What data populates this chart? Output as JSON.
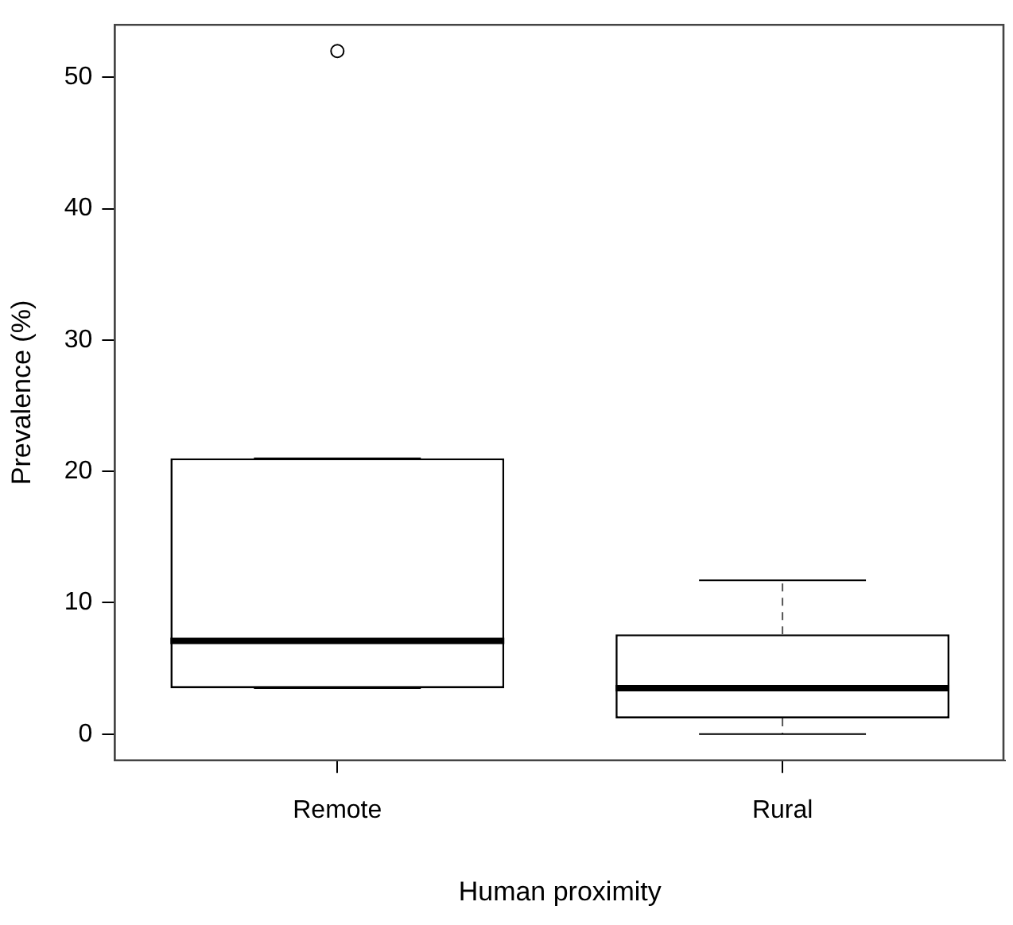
{
  "chart_data": {
    "type": "box",
    "xlabel": "Human proximity",
    "ylabel": "Prevalence (%)",
    "categories": [
      "Remote",
      "Rural"
    ],
    "boxes": [
      {
        "low": 3.5,
        "q1": 3.5,
        "median": 7.1,
        "q3": 21.0,
        "high": 21.0,
        "outliers": [
          52
        ]
      },
      {
        "low": 0,
        "q1": 1.2,
        "median": 3.5,
        "q3": 7.6,
        "high": 11.7
      }
    ],
    "ylim": [
      -2,
      54
    ],
    "yticks": [
      0,
      10,
      20,
      30,
      40,
      50
    ],
    "grid": false,
    "legend": false
  }
}
